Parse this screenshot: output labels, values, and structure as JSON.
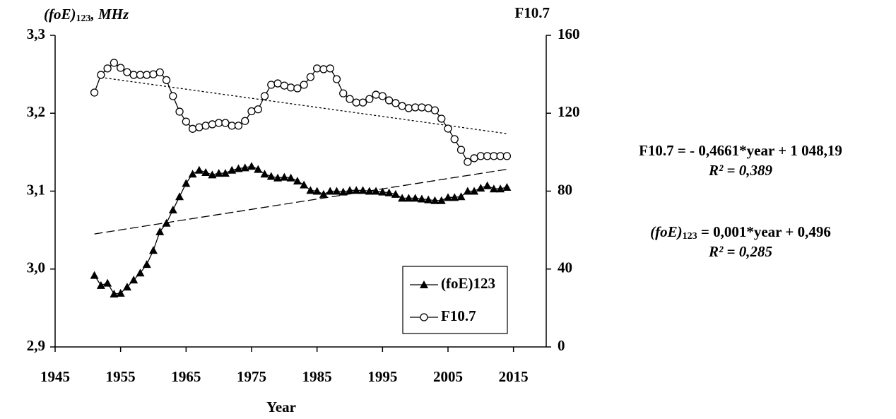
{
  "chart_data": {
    "type": "line",
    "y_label": {
      "base": "(foE)",
      "sub": "123",
      "rest": ", MHz"
    },
    "y2_label": "F10.7",
    "x_label": "Year",
    "x": [
      1951,
      1952,
      1953,
      1954,
      1955,
      1956,
      1957,
      1958,
      1959,
      1960,
      1961,
      1962,
      1963,
      1964,
      1965,
      1966,
      1967,
      1968,
      1969,
      1970,
      1971,
      1972,
      1973,
      1974,
      1975,
      1976,
      1977,
      1978,
      1979,
      1980,
      1981,
      1982,
      1983,
      1984,
      1985,
      1986,
      1987,
      1988,
      1989,
      1990,
      1991,
      1992,
      1993,
      1994,
      1995,
      1996,
      1997,
      1998,
      1999,
      2000,
      2001,
      2002,
      2003,
      2004,
      2005,
      2006,
      2007,
      2008,
      2009,
      2010,
      2011,
      2012,
      2013,
      2014
    ],
    "series": [
      {
        "name": "(foE)123",
        "color": "#000000",
        "marker": "triangle",
        "axis": "y",
        "values": [
          2.992,
          2.979,
          2.982,
          2.968,
          2.969,
          2.977,
          2.986,
          2.995,
          3.006,
          3.024,
          3.048,
          3.059,
          3.076,
          3.093,
          3.11,
          3.122,
          3.127,
          3.124,
          3.121,
          3.123,
          3.123,
          3.127,
          3.129,
          3.13,
          3.132,
          3.128,
          3.122,
          3.119,
          3.117,
          3.118,
          3.117,
          3.113,
          3.108,
          3.101,
          3.1,
          3.096,
          3.1,
          3.1,
          3.099,
          3.101,
          3.101,
          3.101,
          3.1,
          3.1,
          3.099,
          3.098,
          3.096,
          3.091,
          3.091,
          3.091,
          3.09,
          3.089,
          3.088,
          3.088,
          3.092,
          3.092,
          3.093,
          3.1,
          3.1,
          3.104,
          3.107,
          3.103,
          3.103,
          3.105
        ]
      },
      {
        "name": "F10.7",
        "color": "#000000",
        "marker": "circle",
        "axis": "y2",
        "values": [
          130.6,
          139.7,
          143,
          145.9,
          143.3,
          141.1,
          139.7,
          139.7,
          139.7,
          140,
          141,
          137,
          128.8,
          120.8,
          115.7,
          112,
          112.8,
          113.6,
          114.3,
          115,
          115,
          113.6,
          113.6,
          116,
          121,
          122,
          128.8,
          134.6,
          135.3,
          134.2,
          133.2,
          132.8,
          134.6,
          138.6,
          143,
          142.6,
          143,
          137.5,
          130.2,
          127.3,
          125.5,
          125.5,
          127.3,
          129.5,
          128.8,
          126.6,
          125.2,
          123.7,
          122.6,
          123,
          123,
          122.6,
          121.5,
          117.2,
          112.1,
          106.7,
          101.2,
          95,
          96.9,
          98,
          98,
          98,
          98,
          98
        ]
      }
    ],
    "trendlines": [
      {
        "axis": "y2",
        "dash": "short",
        "x": [
          1952,
          2014
        ],
        "values": [
          138.4,
          109.5
        ]
      },
      {
        "axis": "y",
        "dash": "long",
        "x": [
          1951,
          2014
        ],
        "values": [
          3.045,
          3.128
        ]
      }
    ],
    "xlim": [
      1945,
      2020
    ],
    "xticks": [
      1945,
      1955,
      1965,
      1975,
      1985,
      1995,
      2005,
      2015
    ],
    "ylim": [
      2.9,
      3.3
    ],
    "yticks": [
      {
        "value": 2.9,
        "label": "2,9"
      },
      {
        "value": 3.0,
        "label": "3,0"
      },
      {
        "value": 3.1,
        "label": "3,1"
      },
      {
        "value": 3.2,
        "label": "3,2"
      },
      {
        "value": 3.3,
        "label": "3,3"
      }
    ],
    "y2lim": [
      0,
      160
    ],
    "y2ticks": [
      0,
      40,
      80,
      120,
      160
    ],
    "legend": "bottom-right",
    "annotations": [
      {
        "text": "F10.7 = - 0,4661*year + 1 048,19"
      },
      {
        "text": "R² = 0,389"
      },
      {
        "base": "(foE)",
        "sub": "123",
        "rest": " = 0,001*year + 0,496"
      },
      {
        "text": "R² = 0,285"
      }
    ]
  }
}
